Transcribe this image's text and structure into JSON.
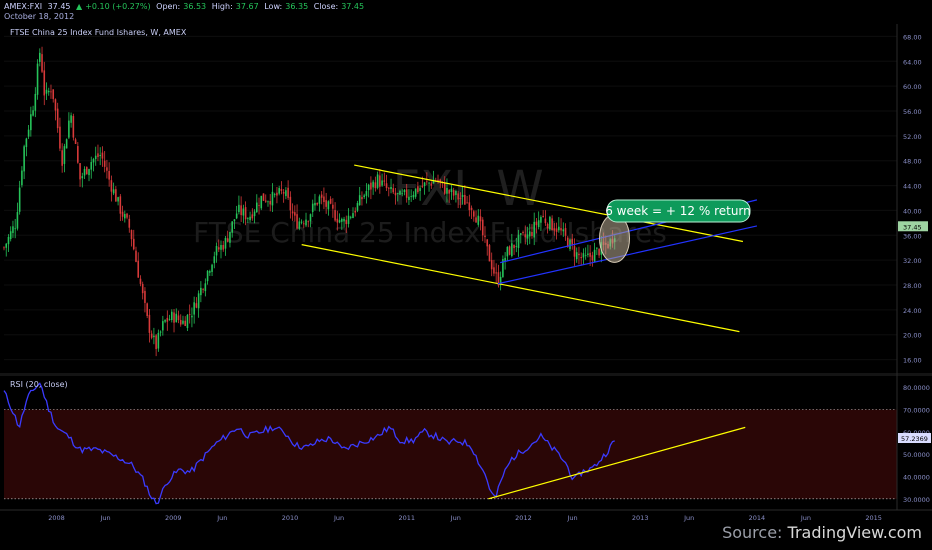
{
  "header": {
    "symbol": "AMEX:FXI",
    "last": "37.45",
    "change": "+0.10 (+0.27%)",
    "open_label": "Open:",
    "open": "36.53",
    "high_label": "High:",
    "high": "37.67",
    "low_label": "Low:",
    "low": "36.35",
    "close_label": "Close:",
    "close": "37.45",
    "date": "October 18, 2012"
  },
  "chart_title": "FTSE China 25 Index Fund Ishares, W, AMEX",
  "watermark": {
    "symbol": "FXI",
    "interval": "W",
    "name": "FTSE China 25 Index Fund Ishares"
  },
  "annotation": "6 week = + 12 % return",
  "rsi_title": "RSI (20, close)",
  "source": {
    "prefix": "Source: ",
    "brand": "TradingView.com"
  },
  "colors": {
    "up": "#26c45a",
    "down": "#d83a3a",
    "trend": "#ffff00",
    "channel": "#2233ff",
    "rsi_line": "#3b3bff",
    "rsi_band": "#2a0606",
    "badge": "#0e9a5a",
    "price_label": "#9ed4a2"
  },
  "chart_data": [
    {
      "type": "candlestick",
      "title": "FTSE China 25 Index Fund Ishares, W, AMEX",
      "x_axis": {
        "type": "time",
        "range": [
          "2007-06",
          "2015-03"
        ],
        "tick_labels": [
          {
            "label": "2008",
            "date": 2008.0
          },
          {
            "label": "Jun",
            "date": 2008.42
          },
          {
            "label": "2009",
            "date": 2009.0
          },
          {
            "label": "Jun",
            "date": 2009.42
          },
          {
            "label": "2010",
            "date": 2010.0
          },
          {
            "label": "Jun",
            "date": 2010.42
          },
          {
            "label": "2011",
            "date": 2011.0
          },
          {
            "label": "Jun",
            "date": 2011.42
          },
          {
            "label": "2012",
            "date": 2012.0
          },
          {
            "label": "Jun",
            "date": 2012.42
          },
          {
            "label": "2013",
            "date": 2013.0
          },
          {
            "label": "Jun",
            "date": 2013.42
          },
          {
            "label": "2014",
            "date": 2014.0
          },
          {
            "label": "Jun",
            "date": 2014.42
          },
          {
            "label": "2015",
            "date": 2015.0
          }
        ]
      },
      "y_axis": {
        "range": [
          14,
          70
        ],
        "ticks": [
          "68.00",
          "64.00",
          "60.00",
          "56.00",
          "52.00",
          "48.00",
          "44.00",
          "40.00",
          "36.00",
          "32.00",
          "28.00",
          "24.00",
          "20.00",
          "16.00"
        ],
        "last_price_label": "37.45"
      },
      "close_path": [
        [
          2007.55,
          34
        ],
        [
          2007.65,
          38
        ],
        [
          2007.72,
          50
        ],
        [
          2007.8,
          57
        ],
        [
          2007.86,
          66
        ],
        [
          2007.9,
          58
        ],
        [
          2007.96,
          60
        ],
        [
          2008.05,
          48
        ],
        [
          2008.12,
          56
        ],
        [
          2008.2,
          45
        ],
        [
          2008.3,
          48
        ],
        [
          2008.38,
          49
        ],
        [
          2008.45,
          45
        ],
        [
          2008.55,
          40
        ],
        [
          2008.63,
          37
        ],
        [
          2008.7,
          30
        ],
        [
          2008.78,
          22
        ],
        [
          2008.85,
          18
        ],
        [
          2008.92,
          22
        ],
        [
          2009.0,
          23
        ],
        [
          2009.08,
          22
        ],
        [
          2009.17,
          24
        ],
        [
          2009.25,
          28
        ],
        [
          2009.35,
          33
        ],
        [
          2009.45,
          35
        ],
        [
          2009.55,
          40
        ],
        [
          2009.65,
          39
        ],
        [
          2009.75,
          42
        ],
        [
          2009.85,
          42
        ],
        [
          2009.95,
          43
        ],
        [
          2010.05,
          38
        ],
        [
          2010.15,
          39
        ],
        [
          2010.25,
          42
        ],
        [
          2010.35,
          40
        ],
        [
          2010.45,
          38
        ],
        [
          2010.55,
          40
        ],
        [
          2010.65,
          43
        ],
        [
          2010.75,
          45
        ],
        [
          2010.85,
          43
        ],
        [
          2010.95,
          42
        ],
        [
          2011.05,
          43
        ],
        [
          2011.15,
          44
        ],
        [
          2011.25,
          45
        ],
        [
          2011.35,
          43
        ],
        [
          2011.45,
          42
        ],
        [
          2011.55,
          41
        ],
        [
          2011.62,
          38
        ],
        [
          2011.68,
          34
        ],
        [
          2011.75,
          30
        ],
        [
          2011.78,
          28.5
        ],
        [
          2011.85,
          33
        ],
        [
          2011.95,
          35
        ],
        [
          2012.05,
          36
        ],
        [
          2012.15,
          39
        ],
        [
          2012.22,
          38
        ],
        [
          2012.3,
          37
        ],
        [
          2012.38,
          35
        ],
        [
          2012.45,
          33
        ],
        [
          2012.52,
          32
        ],
        [
          2012.6,
          33
        ],
        [
          2012.68,
          34
        ],
        [
          2012.75,
          35
        ],
        [
          2012.8,
          37.45
        ]
      ],
      "trend_lines": [
        {
          "name": "descending-upper",
          "color": "yellow",
          "from": [
            2010.55,
            47.3
          ],
          "to": [
            2013.88,
            35
          ]
        },
        {
          "name": "descending-lower",
          "color": "yellow",
          "from": [
            2010.1,
            34.5
          ],
          "to": [
            2013.85,
            20.5
          ]
        },
        {
          "name": "channel-upper",
          "color": "blue",
          "from": [
            2011.8,
            31.6
          ],
          "to": [
            2014.0,
            41.7
          ]
        },
        {
          "name": "channel-lower",
          "color": "blue",
          "from": [
            2011.78,
            28.2
          ],
          "to": [
            2014.0,
            37.5
          ]
        }
      ],
      "highlight": {
        "shape": "ellipse",
        "center": [
          2012.78,
          35.5
        ],
        "note": "last 6 weeks"
      }
    },
    {
      "type": "line",
      "title": "RSI (20, close)",
      "y_axis": {
        "range": [
          25,
          85
        ],
        "ticks": [
          "80.0000",
          "70.0000",
          "60.0000",
          "50.0000",
          "40.0000",
          "30.0000"
        ],
        "last_value_label": "57.2369"
      },
      "band": [
        30,
        70
      ],
      "series": [
        {
          "values_path": [
            [
              2007.55,
              78
            ],
            [
              2007.62,
              70
            ],
            [
              2007.68,
              62
            ],
            [
              2007.75,
              75
            ],
            [
              2007.82,
              80
            ],
            [
              2007.86,
              82
            ],
            [
              2007.92,
              72
            ],
            [
              2008.0,
              62
            ],
            [
              2008.1,
              58
            ],
            [
              2008.2,
              52
            ],
            [
              2008.35,
              52
            ],
            [
              2008.45,
              50
            ],
            [
              2008.55,
              48
            ],
            [
              2008.65,
              45
            ],
            [
              2008.75,
              38
            ],
            [
              2008.82,
              30
            ],
            [
              2008.86,
              28
            ],
            [
              2008.95,
              38
            ],
            [
              2009.05,
              43
            ],
            [
              2009.15,
              42
            ],
            [
              2009.25,
              48
            ],
            [
              2009.35,
              54
            ],
            [
              2009.45,
              58
            ],
            [
              2009.55,
              62
            ],
            [
              2009.65,
              58
            ],
            [
              2009.75,
              60
            ],
            [
              2009.85,
              62
            ],
            [
              2009.95,
              60
            ],
            [
              2010.05,
              54
            ],
            [
              2010.15,
              53
            ],
            [
              2010.25,
              56
            ],
            [
              2010.35,
              57
            ],
            [
              2010.45,
              52
            ],
            [
              2010.55,
              54
            ],
            [
              2010.65,
              56
            ],
            [
              2010.75,
              58
            ],
            [
              2010.85,
              62
            ],
            [
              2010.95,
              56
            ],
            [
              2011.05,
              56
            ],
            [
              2011.15,
              60
            ],
            [
              2011.25,
              58
            ],
            [
              2011.35,
              55
            ],
            [
              2011.45,
              56
            ],
            [
              2011.55,
              54
            ],
            [
              2011.62,
              46
            ],
            [
              2011.68,
              40
            ],
            [
              2011.72,
              33
            ],
            [
              2011.76,
              30
            ],
            [
              2011.82,
              40
            ],
            [
              2011.9,
              48
            ],
            [
              2012.0,
              52
            ],
            [
              2012.08,
              55
            ],
            [
              2012.15,
              58
            ],
            [
              2012.22,
              54
            ],
            [
              2012.3,
              50
            ],
            [
              2012.36,
              46
            ],
            [
              2012.4,
              42
            ],
            [
              2012.43,
              38
            ],
            [
              2012.5,
              42
            ],
            [
              2012.6,
              44
            ],
            [
              2012.7,
              50
            ],
            [
              2012.8,
              57.24
            ]
          ]
        }
      ],
      "trend_lines": [
        {
          "name": "rsi-support",
          "color": "yellow",
          "from": [
            2011.7,
            30
          ],
          "to": [
            2013.9,
            62
          ]
        }
      ]
    }
  ]
}
